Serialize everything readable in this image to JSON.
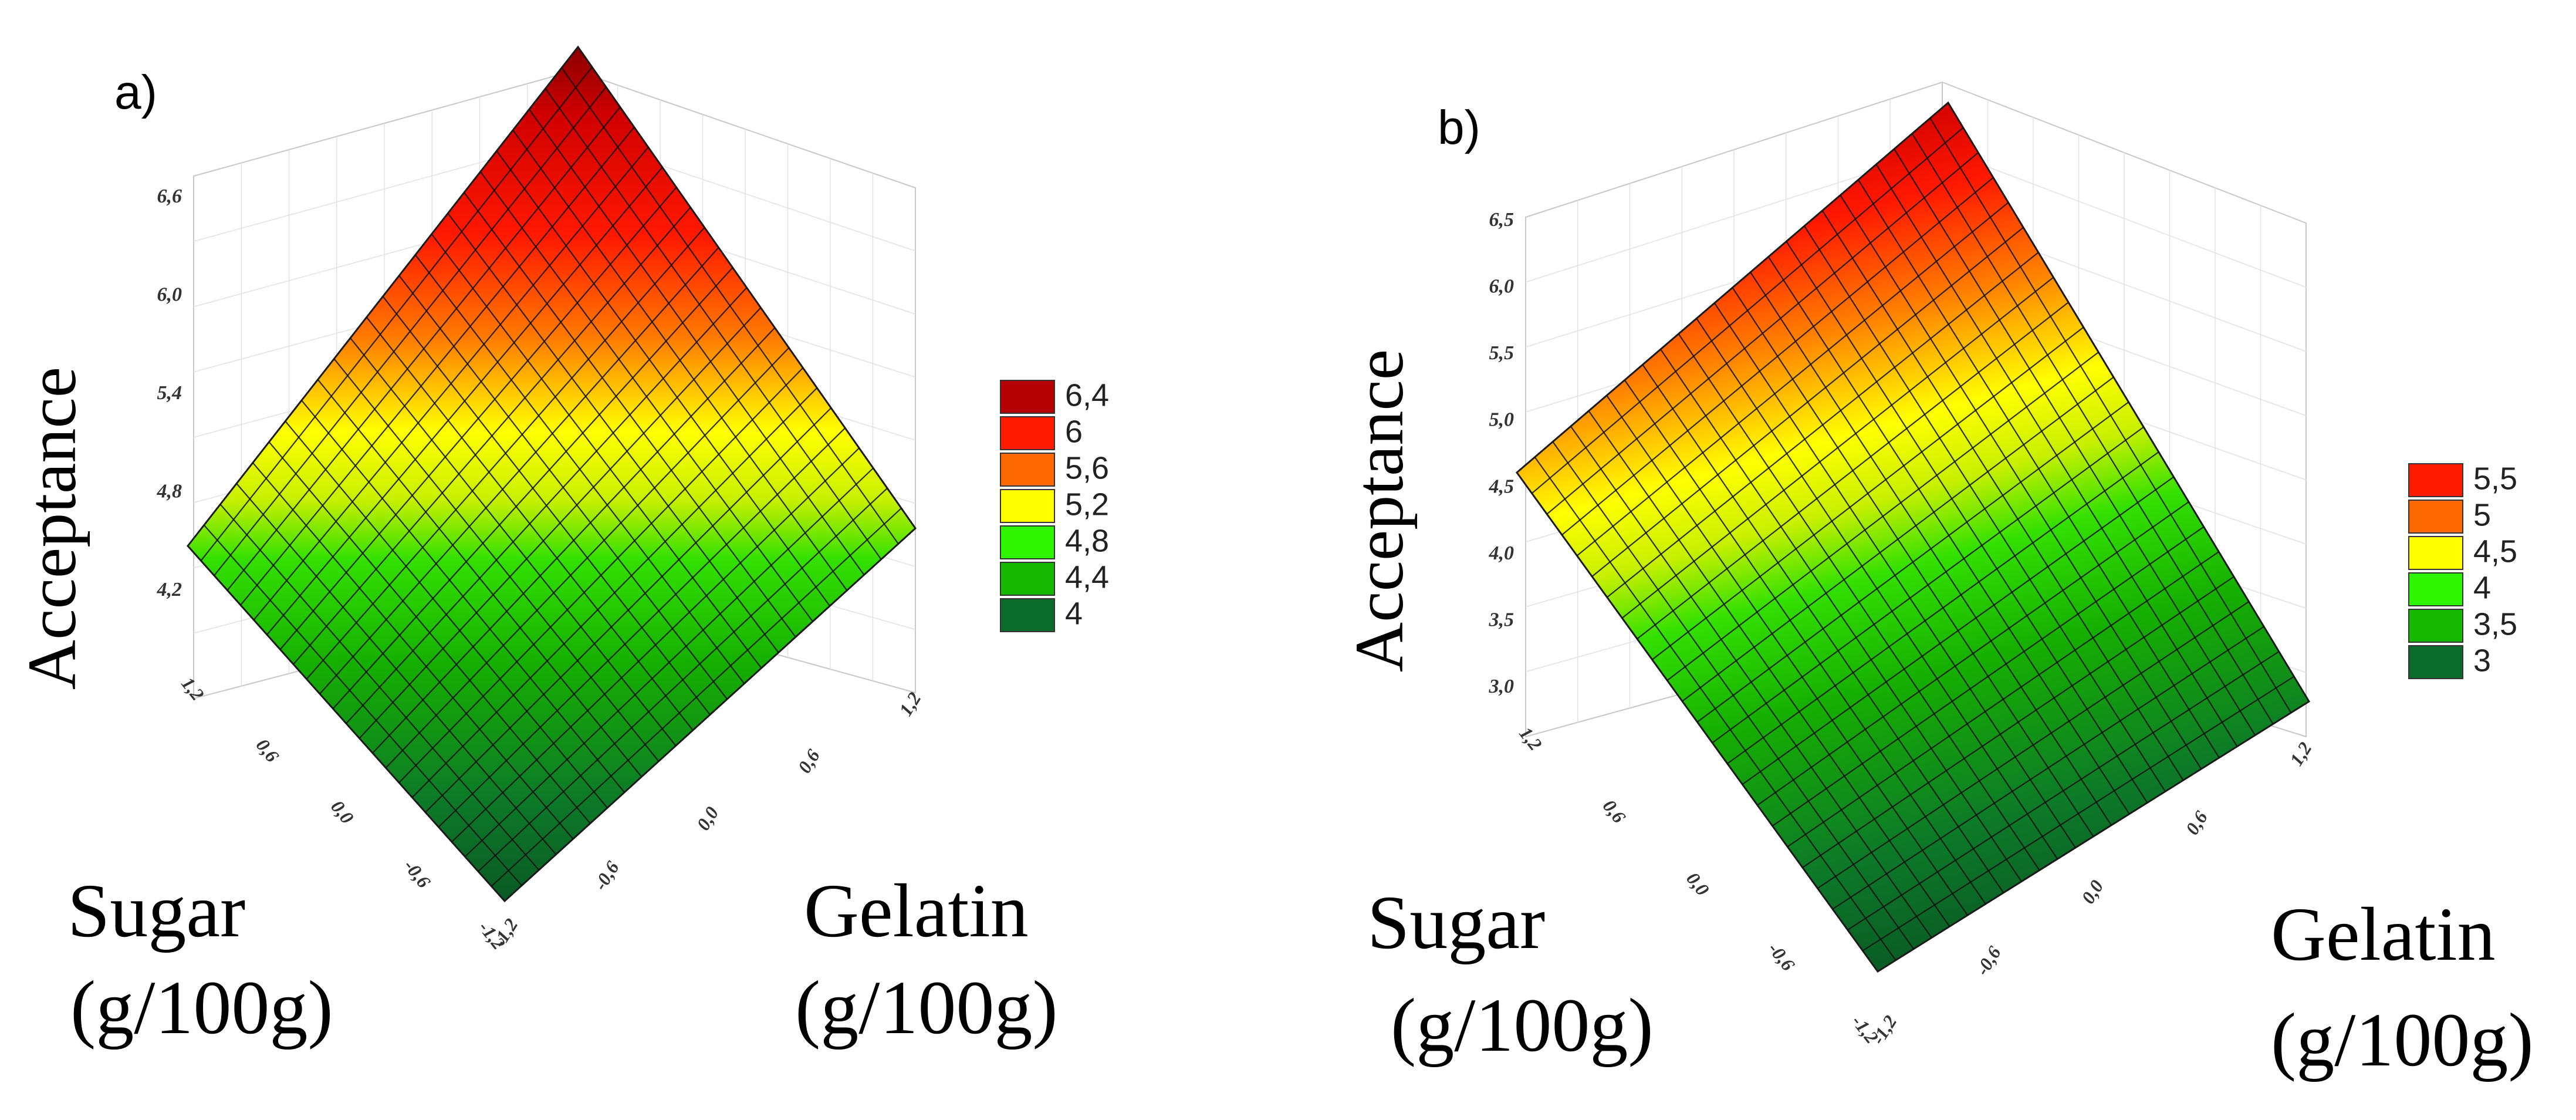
{
  "chart_data": [
    {
      "type": "surface",
      "panel_label": "a)",
      "zlabel": "Acceptance",
      "xlabel_line1": "Sugar",
      "xlabel_line2": "(g/100g)",
      "ylabel_line1": "Gelatin",
      "ylabel_line2": "(g/100g)",
      "z_ticks": [
        "6,6",
        "6,0",
        "5,4",
        "4,8",
        "4,2"
      ],
      "sugar_ticks": [
        "1,2",
        "0,6",
        "0,0",
        "-0,6",
        "-1,2"
      ],
      "gelatin_ticks": [
        "1,2",
        "0,6",
        "0,0",
        "-0,6",
        "-1,2"
      ],
      "legend": [
        "6,4",
        "6",
        "5,6",
        "5,2",
        "4,8",
        "4,4",
        "4"
      ],
      "legend_colors": [
        "#b40000",
        "#ff1a00",
        "#ff6a00",
        "#ffff00",
        "#2ef500",
        "#16b800",
        "#0a6b2a"
      ],
      "corners": {
        "sugar_high_gelatin_high": 6.9,
        "sugar_high_gelatin_low": 4.5,
        "sugar_low_gelatin_high": 4.5,
        "sugar_low_gelatin_low": 3.9
      },
      "grid_range": [
        -1.2,
        1.2
      ]
    },
    {
      "type": "surface",
      "panel_label": "b)",
      "zlabel": "Acceptance",
      "xlabel_line1": "Sugar",
      "xlabel_line2": "(g/100g)",
      "ylabel_line1": "Gelatin",
      "ylabel_line2": "(g/100g)",
      "z_ticks": [
        "6,5",
        "6,0",
        "5,5",
        "5,0",
        "4,5",
        "4,0",
        "3,5",
        "3,0"
      ],
      "sugar_ticks": [
        "1,2",
        "0,6",
        "0,0",
        "-0,6",
        "-1,2"
      ],
      "gelatin_ticks": [
        "1,2",
        "0,6",
        "0,0",
        "-0,6",
        "-1,2"
      ],
      "legend": [
        "5,5",
        "5",
        "4,5",
        "4",
        "3,5",
        "3"
      ],
      "legend_colors": [
        "#ff1a00",
        "#ff6a00",
        "#ffff00",
        "#2ef500",
        "#16b800",
        "#0a6b2a"
      ],
      "corners": {
        "sugar_high_gelatin_high": 6.6,
        "sugar_high_gelatin_low": 4.5,
        "sugar_low_gelatin_high": 3.6,
        "sugar_low_gelatin_low": 2.5
      },
      "grid_range": [
        -1.2,
        1.2
      ]
    }
  ]
}
